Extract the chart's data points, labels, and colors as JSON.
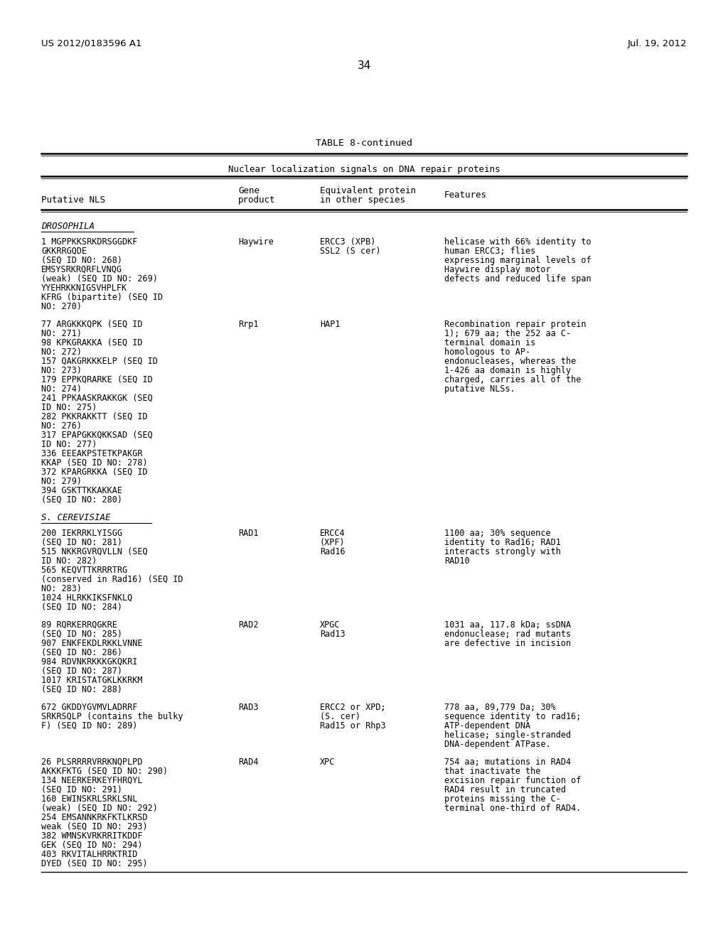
{
  "header_left": "US 2012/0183596 A1",
  "header_right": "Jul. 19, 2012",
  "page_number": "34",
  "table_title": "TABLE 8-continued",
  "table_subtitle": "Nuclear localization signals on DNA repair proteins",
  "bg_color": "#ffffff",
  "text_color": "#000000",
  "rows": [
    {
      "nls": "1 MGPPKKSRKDRSGGDKF\nGKKRRGQDE\n(SEQ ID NO: 268)\nEMSYSRKRQRFLVNQG\n(weak) (SEQ ID NO: 269)\nYYEHRKKNIGSVHPLFK\nKFRG (bipartite) (SEQ ID\nNO: 270)",
      "gene": "Haywire",
      "equiv": "ERCC3 (XPB)\nSSL2 (S cer)",
      "features": "helicase with 66% identity to\nhuman ERCC3; flies\nexpressing marginal levels of\nHaywire display motor\ndefects and reduced life span",
      "section": "DROSOPHILA"
    },
    {
      "nls": "77 ARGKKKQPK (SEQ ID\nNO: 271)\n98 KPKGRAKKA (SEQ ID\nNO: 272)\n157 QAKGRKKKELP (SEQ ID\nNO: 273)\n179 EPPKQRARKE (SEQ ID\nNO: 274)\n241 PPKAASKRAKKGK (SEQ\nID NO: 275)\n282 PKKRAKKTT (SEQ ID\nNO: 276)\n317 EPAPGKKQKKSAD (SEQ\nID NO: 277)\n336 EEEAKPSTETKPAKGR\nKKAP (SEQ ID NO: 278)\n372 KPARGRKKA (SEQ ID\nNO: 279)\n394 GSKTTKKAKKAE\n(SEQ ID NO: 280)",
      "gene": "Rrp1",
      "equiv": "HAP1",
      "features": "Recombination repair protein\n1); 679 aa; the 252 aa C-\nterminal domain is\nhomologous to AP-\nendonucleases, whereas the\n1-426 aa domain is highly\ncharged, carries all of the\nputative NLSs.",
      "section": "DROSOPHILA"
    },
    {
      "nls": "200 IEKRRKLYISGG\n(SEQ ID NO: 281)\n515 NKKRGVRQVLLN (SEQ\nID NO: 282)\n565 KEQVTTKRRRTRG\n(conserved in Rad16) (SEQ ID\nNO: 283)\n1024 HLRKKIKSFNKLQ\n(SEQ ID NO: 284)",
      "gene": "RAD1",
      "equiv": "ERCC4\n(XPF)\nRad16",
      "features": "1100 aa; 30% sequence\nidentity to Rad16; RAD1\ninteracts strongly with\nRAD10",
      "section": "S. CEREVISIAE"
    },
    {
      "nls": "89 RQRKERRQGKRE\n(SEQ ID NO: 285)\n907 ENKFEKDLRKKLVNNE\n(SEQ ID NO: 286)\n984 RDVNKRKKKGKQKRI\n(SEQ ID NO: 287)\n1017 KRISTATGKLKKRKM\n(SEQ ID NO: 288)",
      "gene": "RAD2",
      "equiv": "XPGC\nRad13",
      "features": "1031 aa, 117.8 kDa; ssDNA\nendonuclease; rad mutants\nare defective in incision",
      "section": "S. CEREVISIAE"
    },
    {
      "nls": "672 GKDDYGVMVLADRRF\nSRKRSQLP (contains the bulky\nF) (SEQ ID NO: 289)",
      "gene": "RAD3",
      "equiv": "ERCC2 or XPD;\n(S. cer)\nRad15 or Rhp3",
      "features": "778 aa, 89,779 Da; 30%\nsequence identity to rad16;\nATP-dependent DNA\nhelicase; single-stranded\nDNA-dependent ATPase.",
      "section": "S. CEREVISIAE"
    },
    {
      "nls": "26 PLSRRRRVRRKNQPLPD\nAKKKFKTG (SEQ ID NO: 290)\n134 NEERKERKEYFHRQYL\n(SEQ ID NO: 291)\n160 EWINSKRLSRKLSNL\n(weak) (SEQ ID NO: 292)\n254 EMSANNKRKFKTLKRSD\nweak (SEQ ID NO: 293)\n382 WMNSKVRKRRITKDDF\nGEK (SEQ ID NO: 294)\n403 RKVITALHRRKTRID\nDYED (SEQ ID NO: 295)",
      "gene": "RAD4",
      "equiv": "XPC",
      "features": "754 aa; mutations in RAD4\nthat inactivate the\nexcision repair function of\nRAD4 result in truncated\nproteins missing the C-\nterminal one-third of RAD4.",
      "section": "S. CEREVISIAE"
    }
  ]
}
